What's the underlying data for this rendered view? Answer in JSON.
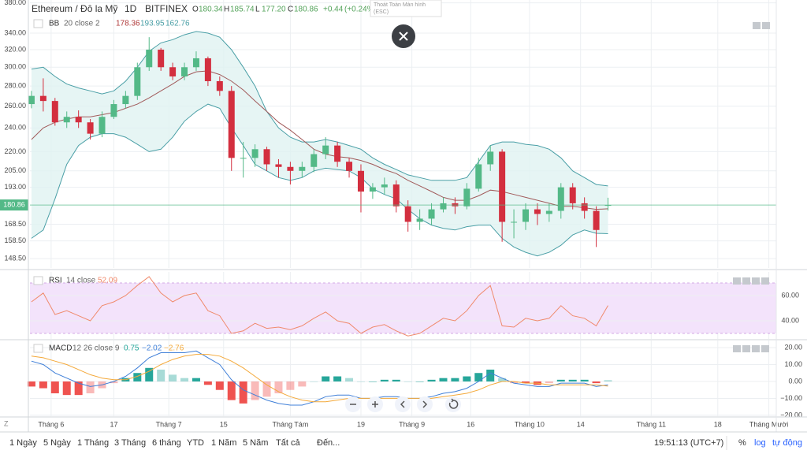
{
  "header": {
    "symbol": "Ethereum / Đô la Mỹ",
    "interval": "1D",
    "exchange": "BITFINEX",
    "ohlc_labels": [
      "O",
      "H",
      "L",
      "C"
    ],
    "ohlc_values": [
      "180.34",
      "185.74",
      "177.20",
      "180.86"
    ],
    "change": "+0.44",
    "change_pct": "(+0.24%)"
  },
  "tooltip": {
    "title": "Thoát Toàn Màn hình",
    "hint": "(ESC)"
  },
  "toolbar": {
    "ranges": [
      "1 Ngày",
      "5 Ngày",
      "1 Tháng",
      "3 Tháng",
      "6 tháng",
      "YTD",
      "1 Năm",
      "5 Năm",
      "Tất cả"
    ],
    "goto": "Đến...",
    "clock": "19:51:13 (UTC+7)",
    "options": [
      "%",
      "log",
      "tự động"
    ]
  },
  "corner": "Z",
  "chart_data": [
    {
      "type": "candlestick",
      "categories": [
        null,
        null,
        null,
        null,
        null,
        null,
        null,
        null,
        null,
        null,
        null,
        null,
        null,
        null,
        null,
        null,
        null,
        null,
        null,
        null,
        null,
        null,
        null,
        null,
        null,
        null,
        null,
        null,
        null,
        null,
        null,
        null,
        null,
        null,
        null,
        null,
        null,
        null,
        null,
        null,
        null,
        null,
        null,
        null,
        null,
        null,
        null,
        null,
        null,
        null
      ],
      "open": [
        262,
        270,
        265,
        245,
        250,
        245,
        235,
        250,
        262,
        270,
        300,
        320,
        300,
        290,
        300,
        310,
        285,
        275,
        215,
        215,
        222,
        210,
        208,
        205,
        208,
        218,
        225,
        212,
        205,
        190,
        193,
        195,
        180,
        170,
        172,
        178,
        182,
        180,
        192,
        210,
        220,
        170,
        170,
        178,
        175,
        177,
        193,
        182,
        177,
        180.34
      ],
      "high": [
        275,
        288,
        268,
        255,
        256,
        248,
        255,
        266,
        275,
        305,
        335,
        322,
        305,
        305,
        318,
        312,
        290,
        280,
        228,
        226,
        224,
        214,
        212,
        212,
        222,
        232,
        228,
        215,
        210,
        196,
        200,
        198,
        184,
        178,
        182,
        186,
        186,
        196,
        215,
        225,
        222,
        178,
        182,
        182,
        182,
        196,
        196,
        186,
        180,
        185.74
      ],
      "low": [
        258,
        255,
        242,
        240,
        240,
        230,
        232,
        248,
        258,
        266,
        296,
        296,
        286,
        286,
        296,
        280,
        270,
        205,
        200,
        208,
        205,
        200,
        195,
        200,
        204,
        214,
        208,
        200,
        176,
        185,
        188,
        176,
        164,
        165,
        168,
        176,
        175,
        178,
        190,
        205,
        158,
        160,
        165,
        168,
        170,
        172,
        178,
        172,
        155,
        177.2
      ],
      "close": [
        270,
        265,
        245,
        250,
        245,
        235,
        250,
        262,
        270,
        300,
        320,
        300,
        290,
        300,
        310,
        285,
        275,
        215,
        215,
        222,
        210,
        208,
        205,
        208,
        218,
        225,
        212,
        205,
        190,
        193,
        195,
        180,
        170,
        172,
        178,
        182,
        180,
        192,
        210,
        220,
        170,
        170,
        178,
        175,
        177,
        193,
        182,
        177,
        165,
        180.86
      ],
      "up_color": "#53b987",
      "down_color": "#d32f3f",
      "bollinger": {
        "name": "BB",
        "params": "20 close 2",
        "fill": "#e0f2f1",
        "basis": {
          "color": "#a15a5a",
          "values": [
            230,
            240,
            245,
            248,
            250,
            250,
            252,
            254,
            258,
            262,
            268,
            275,
            282,
            290,
            295,
            296,
            292,
            285,
            276,
            265,
            255,
            245,
            238,
            230,
            222,
            218,
            216,
            215,
            213,
            210,
            206,
            203,
            198,
            194,
            190,
            186,
            184,
            184,
            187,
            191,
            190,
            188,
            186,
            184,
            182,
            180,
            180,
            179,
            178,
            178.36
          ]
        },
        "upper": {
          "color": "#4a9fa6",
          "values": [
            298,
            300,
            290,
            282,
            278,
            275,
            272,
            275,
            285,
            300,
            318,
            328,
            332,
            338,
            342,
            340,
            335,
            320,
            300,
            280,
            255,
            240,
            232,
            228,
            228,
            230,
            228,
            225,
            222,
            215,
            210,
            206,
            202,
            200,
            198,
            198,
            198,
            200,
            212,
            225,
            228,
            228,
            226,
            225,
            222,
            215,
            205,
            200,
            195,
            193.95
          ]
        },
        "lower": {
          "color": "#4a9fa6",
          "values": [
            160,
            165,
            185,
            210,
            225,
            232,
            235,
            235,
            232,
            226,
            220,
            222,
            232,
            246,
            255,
            262,
            258,
            240,
            225,
            210,
            205,
            200,
            198,
            200,
            205,
            207,
            206,
            205,
            200,
            192,
            188,
            185,
            178,
            172,
            168,
            166,
            165,
            167,
            168,
            168,
            160,
            155,
            152,
            150,
            152,
            156,
            162,
            165,
            163,
            162.76
          ]
        }
      },
      "log": true,
      "grid": true,
      "ylim": [
        143.5,
        384
      ],
      "yticks": [
        {
          "value": 380,
          "label": "380.00"
        },
        {
          "value": 340,
          "label": "340.00"
        },
        {
          "value": 320,
          "label": "320.00"
        },
        {
          "value": 300,
          "label": "300.00"
        },
        {
          "value": 280,
          "label": "280.00"
        },
        {
          "value": 260,
          "label": "260.00"
        },
        {
          "value": 240,
          "label": "240.00"
        },
        {
          "value": 220,
          "label": "220.00"
        },
        {
          "value": 205,
          "label": "205.00"
        },
        {
          "value": 193,
          "label": "193.00"
        },
        {
          "value": 168.5,
          "label": "168.50"
        },
        {
          "value": 158.5,
          "label": "158.50"
        },
        {
          "value": 148.5,
          "label": "148.50"
        }
      ],
      "xlim": [
        -0.13,
        63.3
      ],
      "xticks": [
        {
          "value": 1.67,
          "label": "Tháng 6"
        },
        {
          "value": 7,
          "label": "17"
        },
        {
          "value": 11.67,
          "label": "Tháng 7"
        },
        {
          "value": 16.33,
          "label": "15"
        },
        {
          "value": 22,
          "label": "Tháng Tám"
        },
        {
          "value": 28,
          "label": "19"
        },
        {
          "value": 32.33,
          "label": "Tháng 9"
        },
        {
          "value": 37.33,
          "label": "16"
        },
        {
          "value": 42.33,
          "label": "Tháng 10"
        },
        {
          "value": 46.67,
          "label": "14"
        },
        {
          "value": 52.67,
          "label": "Tháng 11"
        },
        {
          "value": 58.33,
          "label": "18"
        },
        {
          "value": 62.67,
          "label": "Tháng Mười"
        }
      ],
      "last_price_color": "#53b987"
    },
    {
      "type": "line",
      "name": "RSI",
      "params": "14 close",
      "color": "#f08a6c",
      "values": [
        55,
        62,
        45,
        48,
        44,
        40,
        52,
        55,
        60,
        68,
        75,
        62,
        55,
        60,
        62,
        48,
        44,
        30,
        32,
        38,
        34,
        35,
        33,
        36,
        42,
        47,
        40,
        38,
        30,
        35,
        37,
        32,
        28,
        30,
        36,
        42,
        40,
        48,
        60,
        68,
        36,
        35,
        42,
        40,
        42,
        52,
        44,
        42,
        36,
        52.09
      ],
      "band": [
        30,
        70
      ],
      "band_color": "#f3e3fb",
      "ylim": [
        25.6,
        78.75
      ],
      "yticks": [
        {
          "value": 60,
          "label": "60.00"
        },
        {
          "value": 40,
          "label": "40.00"
        }
      ],
      "grid": true
    },
    {
      "type": "macd",
      "name": "MACD",
      "params": "12 26 close 9",
      "histogram": {
        "up_color": "#26a69a",
        "down_color": "#ef5350",
        "values": [
          -3,
          -4,
          -7,
          -8,
          -8,
          -7,
          -4,
          -1,
          2,
          5,
          8,
          7,
          4,
          2,
          2,
          -2,
          -5,
          -11,
          -13,
          -11,
          -9,
          -7,
          -5,
          -3,
          0,
          3,
          3,
          2,
          0,
          0,
          1,
          1,
          0,
          0,
          1,
          2,
          2,
          3,
          5,
          7,
          2,
          -1,
          -1,
          -2,
          -1,
          1,
          1,
          1,
          -1,
          0.75
        ]
      },
      "macd": {
        "color": "#3f7fd8",
        "last_label": "−2.02",
        "values": [
          12,
          10,
          5,
          2,
          -1,
          -3,
          -2,
          0,
          3,
          8,
          14,
          17,
          17,
          17,
          18,
          14,
          10,
          1,
          -5,
          -8,
          -11,
          -13,
          -14,
          -14,
          -12,
          -9,
          -8,
          -8,
          -10,
          -10,
          -9,
          -9,
          -10,
          -10,
          -9,
          -7,
          -6,
          -4,
          0,
          5,
          2,
          -1,
          -2,
          -3,
          -3,
          -1,
          -1,
          -1,
          -3,
          -2.02
        ]
      },
      "signal": {
        "color": "#f4a93a",
        "last_label": "−2.76",
        "values": [
          15,
          14,
          12,
          10,
          7,
          4,
          2,
          1,
          1,
          3,
          6,
          10,
          13,
          15,
          16,
          16,
          15,
          12,
          8,
          3,
          -2,
          -6,
          -9,
          -11,
          -12,
          -12,
          -11,
          -10,
          -10,
          -10,
          -10,
          -10,
          -10,
          -10,
          -10,
          -9,
          -8,
          -7,
          -5,
          -2,
          0,
          0,
          -1,
          -1,
          -2,
          -2,
          -2,
          -2,
          -2,
          -2.76
        ]
      },
      "ylim": [
        -20.5,
        24.2
      ],
      "yticks": [
        {
          "value": 20,
          "label": "20.00"
        },
        {
          "value": 10,
          "label": "10.00"
        },
        {
          "value": 0,
          "label": "0.00"
        },
        {
          "value": -10,
          "label": "−10.00"
        },
        {
          "value": -20,
          "label": "−20.00"
        }
      ],
      "grid": true
    }
  ]
}
